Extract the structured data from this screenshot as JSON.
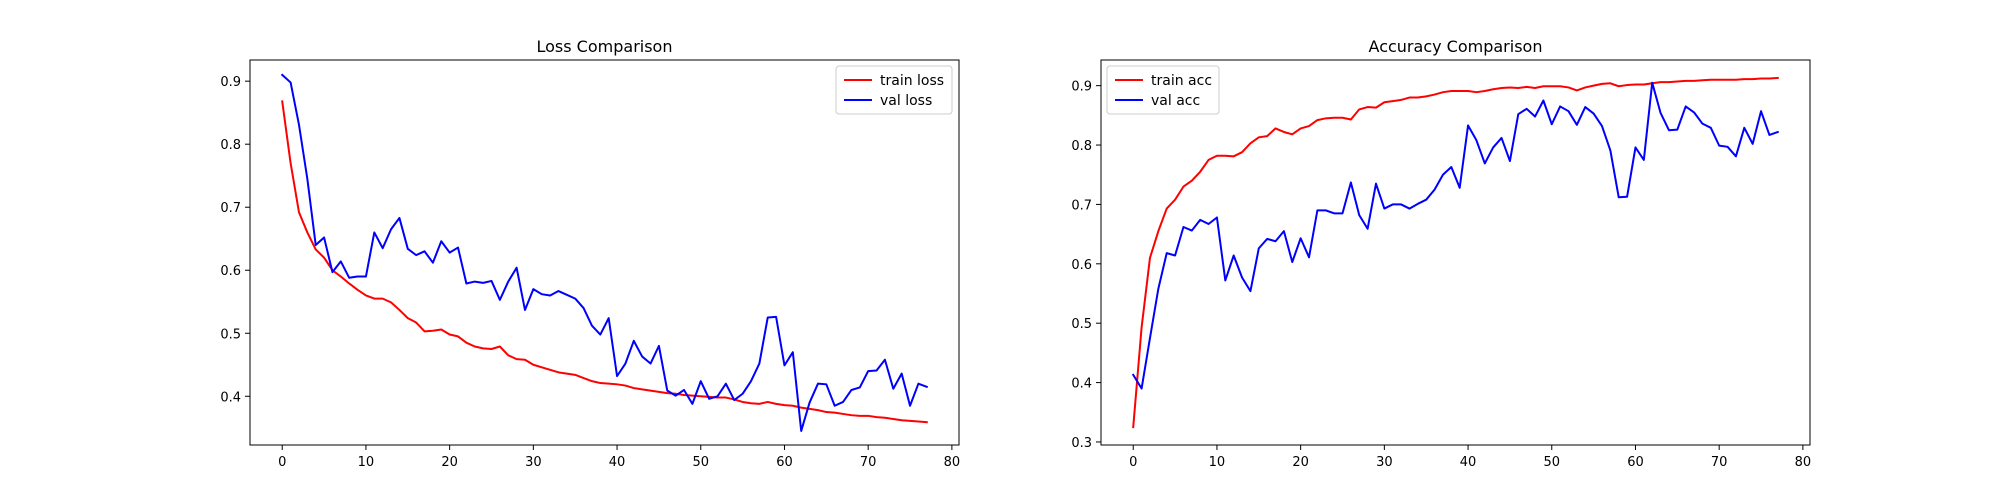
{
  "chart_data": [
    {
      "type": "line",
      "title": "Loss Comparison",
      "xlabel": "",
      "ylabel": "",
      "xlim": [
        -3.85,
        80.85
      ],
      "ylim": [
        0.3227,
        0.9336
      ],
      "xticks": [
        0,
        10,
        20,
        30,
        40,
        50,
        60,
        70,
        80
      ],
      "yticks": [
        0.4,
        0.5,
        0.6,
        0.7,
        0.8,
        0.9
      ],
      "tick_labels_x": [
        "0",
        "10",
        "20",
        "30",
        "40",
        "50",
        "60",
        "70",
        "80"
      ],
      "tick_labels_y": [
        "0.4",
        "0.5",
        "0.6",
        "0.7",
        "0.8",
        "0.9"
      ],
      "grid": false,
      "legend_position": "upper right",
      "x": [
        0,
        1,
        2,
        3,
        4,
        5,
        6,
        7,
        8,
        9,
        10,
        11,
        12,
        13,
        14,
        15,
        16,
        17,
        18,
        19,
        20,
        21,
        22,
        23,
        24,
        25,
        26,
        27,
        28,
        29,
        30,
        31,
        32,
        33,
        34,
        35,
        36,
        37,
        38,
        39,
        40,
        41,
        42,
        43,
        44,
        45,
        46,
        47,
        48,
        49,
        50,
        51,
        52,
        53,
        54,
        55,
        56,
        57,
        58,
        59,
        60,
        61,
        62,
        63,
        64,
        65,
        66,
        67,
        68,
        69,
        70,
        71,
        72,
        73,
        74,
        75,
        76,
        77
      ],
      "series": [
        {
          "name": "train loss",
          "color": "#ff0000",
          "values": [
            0.868,
            0.77,
            0.692,
            0.66,
            0.633,
            0.62,
            0.6,
            0.59,
            0.579,
            0.569,
            0.56,
            0.555,
            0.555,
            0.549,
            0.537,
            0.524,
            0.517,
            0.503,
            0.504,
            0.506,
            0.498,
            0.495,
            0.485,
            0.479,
            0.476,
            0.475,
            0.479,
            0.465,
            0.459,
            0.458,
            0.45,
            0.446,
            0.442,
            0.438,
            0.436,
            0.434,
            0.429,
            0.424,
            0.421,
            0.42,
            0.419,
            0.417,
            0.413,
            0.411,
            0.409,
            0.407,
            0.405,
            0.404,
            0.402,
            0.401,
            0.4,
            0.399,
            0.398,
            0.398,
            0.395,
            0.391,
            0.389,
            0.388,
            0.391,
            0.388,
            0.386,
            0.385,
            0.382,
            0.38,
            0.378,
            0.375,
            0.374,
            0.372,
            0.37,
            0.369,
            0.369,
            0.367,
            0.366,
            0.364,
            0.362,
            0.361,
            0.36,
            0.359
          ]
        },
        {
          "name": "val loss",
          "color": "#0000ff",
          "values": [
            0.91,
            0.898,
            0.831,
            0.745,
            0.64,
            0.652,
            0.597,
            0.614,
            0.588,
            0.59,
            0.59,
            0.66,
            0.635,
            0.665,
            0.683,
            0.634,
            0.624,
            0.63,
            0.612,
            0.646,
            0.628,
            0.636,
            0.579,
            0.582,
            0.58,
            0.583,
            0.553,
            0.582,
            0.604,
            0.537,
            0.57,
            0.562,
            0.56,
            0.567,
            0.561,
            0.555,
            0.54,
            0.512,
            0.498,
            0.524,
            0.432,
            0.452,
            0.488,
            0.463,
            0.452,
            0.48,
            0.409,
            0.401,
            0.41,
            0.388,
            0.424,
            0.396,
            0.4,
            0.42,
            0.394,
            0.404,
            0.424,
            0.452,
            0.525,
            0.526,
            0.449,
            0.47,
            0.345,
            0.39,
            0.42,
            0.419,
            0.385,
            0.391,
            0.41,
            0.414,
            0.44,
            0.441,
            0.458,
            0.412,
            0.436,
            0.385,
            0.42,
            0.415
          ]
        }
      ]
    },
    {
      "type": "line",
      "title": "Accuracy Comparison",
      "xlabel": "",
      "ylabel": "",
      "xlim": [
        -3.85,
        80.85
      ],
      "ylim": [
        0.2949,
        0.9432
      ],
      "xticks": [
        0,
        10,
        20,
        30,
        40,
        50,
        60,
        70,
        80
      ],
      "yticks": [
        0.3,
        0.4,
        0.5,
        0.6,
        0.7,
        0.8,
        0.9
      ],
      "tick_labels_x": [
        "0",
        "10",
        "20",
        "30",
        "40",
        "50",
        "60",
        "70",
        "80"
      ],
      "tick_labels_y": [
        "0.3",
        "0.4",
        "0.5",
        "0.6",
        "0.7",
        "0.8",
        "0.9"
      ],
      "grid": false,
      "legend_position": "upper left",
      "x": [
        0,
        1,
        2,
        3,
        4,
        5,
        6,
        7,
        8,
        9,
        10,
        11,
        12,
        13,
        14,
        15,
        16,
        17,
        18,
        19,
        20,
        21,
        22,
        23,
        24,
        25,
        26,
        27,
        28,
        29,
        30,
        31,
        32,
        33,
        34,
        35,
        36,
        37,
        38,
        39,
        40,
        41,
        42,
        43,
        44,
        45,
        46,
        47,
        48,
        49,
        50,
        51,
        52,
        53,
        54,
        55,
        56,
        57,
        58,
        59,
        60,
        61,
        62,
        63,
        64,
        65,
        66,
        67,
        68,
        69,
        70,
        71,
        72,
        73,
        74,
        75,
        76,
        77
      ],
      "series": [
        {
          "name": "train acc",
          "color": "#ff0000",
          "values": [
            0.325,
            0.493,
            0.61,
            0.655,
            0.693,
            0.708,
            0.73,
            0.74,
            0.755,
            0.775,
            0.782,
            0.782,
            0.781,
            0.788,
            0.803,
            0.813,
            0.815,
            0.828,
            0.822,
            0.818,
            0.828,
            0.832,
            0.842,
            0.845,
            0.846,
            0.846,
            0.843,
            0.86,
            0.864,
            0.863,
            0.872,
            0.874,
            0.876,
            0.88,
            0.88,
            0.882,
            0.885,
            0.889,
            0.891,
            0.891,
            0.891,
            0.889,
            0.891,
            0.894,
            0.896,
            0.897,
            0.896,
            0.898,
            0.896,
            0.899,
            0.899,
            0.899,
            0.897,
            0.892,
            0.897,
            0.9,
            0.903,
            0.904,
            0.899,
            0.901,
            0.902,
            0.902,
            0.904,
            0.906,
            0.906,
            0.907,
            0.908,
            0.908,
            0.909,
            0.91,
            0.91,
            0.91,
            0.91,
            0.911,
            0.911,
            0.912,
            0.912,
            0.913
          ]
        },
        {
          "name": "val acc",
          "color": "#0000ff",
          "values": [
            0.413,
            0.39,
            0.475,
            0.558,
            0.618,
            0.614,
            0.662,
            0.656,
            0.674,
            0.667,
            0.678,
            0.572,
            0.614,
            0.577,
            0.554,
            0.626,
            0.642,
            0.638,
            0.655,
            0.603,
            0.643,
            0.611,
            0.69,
            0.69,
            0.685,
            0.685,
            0.737,
            0.682,
            0.659,
            0.735,
            0.693,
            0.7,
            0.7,
            0.693,
            0.701,
            0.708,
            0.725,
            0.75,
            0.763,
            0.728,
            0.833,
            0.808,
            0.769,
            0.796,
            0.812,
            0.773,
            0.852,
            0.861,
            0.848,
            0.875,
            0.835,
            0.865,
            0.857,
            0.834,
            0.864,
            0.853,
            0.832,
            0.791,
            0.712,
            0.713,
            0.796,
            0.775,
            0.905,
            0.854,
            0.825,
            0.826,
            0.865,
            0.855,
            0.836,
            0.829,
            0.799,
            0.797,
            0.781,
            0.829,
            0.802,
            0.857,
            0.817,
            0.822
          ]
        }
      ]
    }
  ]
}
